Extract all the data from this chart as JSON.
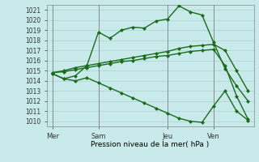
{
  "background_color": "#c8eaea",
  "grid_color": "#b0d0d0",
  "line_color": "#1a6b1a",
  "vline_color": "#808080",
  "xlabel": "Pression niveau de la mer( hPa )",
  "ylim": [
    1009.5,
    1021.5
  ],
  "yticks": [
    1010,
    1011,
    1012,
    1013,
    1014,
    1015,
    1016,
    1017,
    1018,
    1019,
    1020,
    1021
  ],
  "xtick_labels": [
    "Mer",
    "Sam",
    "Jeu",
    "Ven"
  ],
  "xtick_positions": [
    0,
    4,
    10,
    14
  ],
  "xlim": [
    -0.5,
    17.5
  ],
  "series1_x": [
    0,
    1,
    2,
    3,
    4,
    5,
    6,
    7,
    8,
    9,
    10,
    11,
    12,
    13,
    14,
    15,
    16,
    17
  ],
  "series1_y": [
    1014.7,
    1014.2,
    1014.5,
    1015.5,
    1018.8,
    1018.2,
    1019.0,
    1019.3,
    1019.2,
    1019.9,
    1020.1,
    1021.4,
    1020.8,
    1020.5,
    1017.8,
    1015.2,
    1013.5,
    1012.0
  ],
  "series2_x": [
    0,
    1,
    2,
    3,
    4,
    5,
    6,
    7,
    8,
    9,
    10,
    11,
    12,
    13,
    14,
    15,
    16,
    17
  ],
  "series2_y": [
    1014.8,
    1015.0,
    1015.3,
    1015.5,
    1015.7,
    1015.9,
    1016.1,
    1016.3,
    1016.5,
    1016.7,
    1016.9,
    1017.2,
    1017.4,
    1017.5,
    1017.6,
    1017.0,
    1015.0,
    1013.0
  ],
  "series3_x": [
    0,
    1,
    2,
    3,
    4,
    5,
    6,
    7,
    8,
    9,
    10,
    11,
    12,
    13,
    14,
    15,
    16,
    17
  ],
  "series3_y": [
    1014.8,
    1014.9,
    1015.1,
    1015.3,
    1015.5,
    1015.7,
    1015.9,
    1016.0,
    1016.2,
    1016.4,
    1016.5,
    1016.7,
    1016.9,
    1017.0,
    1017.1,
    1015.5,
    1012.5,
    1010.2
  ],
  "series4_x": [
    0,
    1,
    2,
    3,
    4,
    5,
    6,
    7,
    8,
    9,
    10,
    11,
    12,
    13,
    14,
    15,
    16,
    17
  ],
  "series4_y": [
    1014.7,
    1014.2,
    1014.0,
    1014.3,
    1013.8,
    1013.3,
    1012.8,
    1012.3,
    1011.8,
    1011.3,
    1010.8,
    1010.3,
    1010.0,
    1009.9,
    1011.5,
    1013.0,
    1011.0,
    1010.1
  ],
  "vline_positions": [
    0,
    4,
    10,
    14
  ],
  "marker_size": 2.5,
  "line_width": 1.0,
  "ylabel_fontsize": 5.5,
  "xlabel_fontsize": 6.5,
  "xtick_fontsize": 6.0
}
